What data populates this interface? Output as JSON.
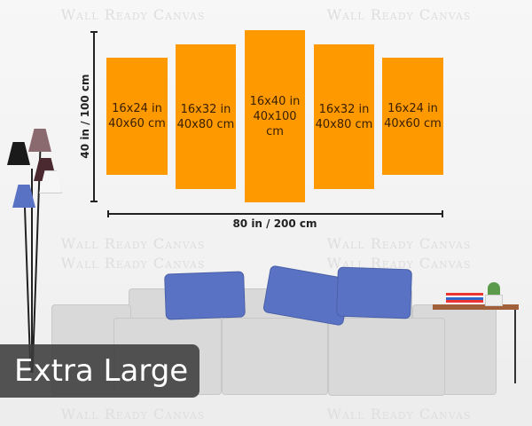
{
  "watermark": "Wall Ready Canvas",
  "panels": [
    {
      "inches": "16x24 in",
      "cm": "40x60 cm"
    },
    {
      "inches": "16x32 in",
      "cm": "40x80 cm"
    },
    {
      "inches": "16x40 in",
      "cm": "40x100 cm"
    },
    {
      "inches": "16x32 in",
      "cm": "40x80 cm"
    },
    {
      "inches": "16x24 in",
      "cm": "40x60 cm"
    }
  ],
  "height_label": "40 in / 100 cm",
  "width_label": "80 in / 200 cm",
  "size_badge": "Extra Large",
  "colors": {
    "panel": "#ff9900",
    "pillow": "#5a72c4",
    "sofa": "#d9d9d9"
  }
}
